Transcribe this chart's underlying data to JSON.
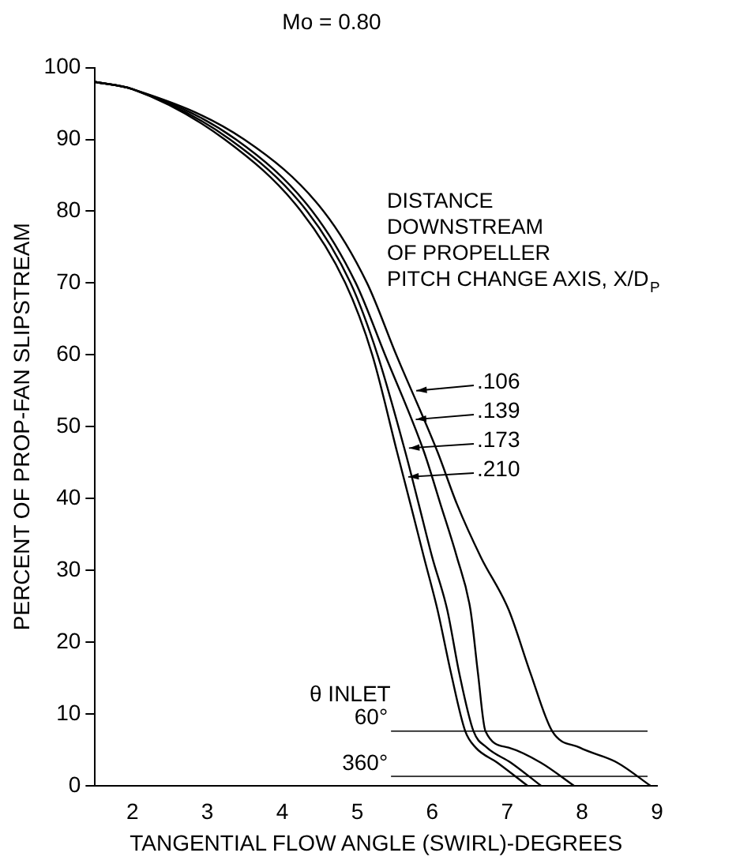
{
  "chart_data": {
    "type": "line",
    "title": "Mo = 0.80",
    "xlabel": "TANGENTIAL FLOW ANGLE (SWIRL)-DEGREES",
    "ylabel": "PERCENT OF PROP-FAN SLIPSTREAM",
    "xlim": [
      1.5,
      9
    ],
    "xticks": [
      2,
      3,
      4,
      5,
      6,
      7,
      8,
      9
    ],
    "ylim": [
      0,
      100
    ],
    "yticks": [
      0,
      10,
      20,
      30,
      40,
      50,
      60,
      70,
      80,
      90,
      100
    ],
    "grid": false,
    "legend": "right",
    "marker": "none",
    "line_style": "solid",
    "series": [
      {
        "name": ".106",
        "color": "#000000",
        "x": [
          1.5,
          2,
          3.49,
          4.55,
          5.13,
          5.52,
          6.07,
          6.33,
          6.65,
          7.02,
          7.31,
          7.6,
          7.97,
          8.47,
          8.91
        ],
        "values": [
          98,
          97,
          90,
          80,
          70,
          60,
          46.5,
          39.2,
          31.8,
          24.5,
          15.7,
          7.6,
          5.3,
          3.2,
          0
        ]
      },
      {
        "name": ".139",
        "color": "#000000",
        "x": [
          1.5,
          2,
          3.38,
          4.4,
          4.98,
          5.37,
          5.89,
          6.11,
          6.33,
          6.51,
          6.61,
          6.71,
          7.02,
          7.45,
          7.89
        ],
        "values": [
          98,
          97,
          90,
          80,
          70,
          60,
          46.5,
          39.2,
          31.8,
          24.5,
          15.7,
          7.6,
          5.3,
          3.2,
          0
        ]
      },
      {
        "name": ".173",
        "color": "#000000",
        "x": [
          1.5,
          2,
          3.3,
          4.33,
          4.91,
          5.27,
          5.64,
          5.82,
          6.0,
          6.2,
          6.36,
          6.55,
          6.73,
          7.05,
          7.45
        ],
        "values": [
          98,
          97,
          90,
          80,
          70,
          60,
          46.5,
          39.2,
          31.8,
          24.5,
          15.7,
          7.6,
          5.3,
          3.2,
          0
        ]
      },
      {
        "name": ".210",
        "color": "#000000",
        "x": [
          1.5,
          2,
          3.23,
          4.25,
          4.84,
          5.2,
          5.53,
          5.71,
          5.89,
          6.07,
          6.25,
          6.44,
          6.58,
          6.87,
          7.27
        ],
        "values": [
          98,
          97,
          90,
          80,
          70,
          60,
          46.5,
          39.2,
          31.8,
          24.5,
          15.7,
          7.6,
          5.3,
          3.2,
          0
        ]
      }
    ],
    "ref_lines": [
      {
        "axis": "y",
        "value": 7.6,
        "color": "#000000"
      },
      {
        "axis": "y",
        "value": 1.3,
        "color": "#000000"
      }
    ],
    "annotations": [
      "DISTANCE",
      "DOWNSTREAM",
      "OF PROPELLER",
      "PITCH CHANGE AXIS, X/D$_{P}$",
      "θ INLET",
      "60°",
      "360°"
    ]
  }
}
